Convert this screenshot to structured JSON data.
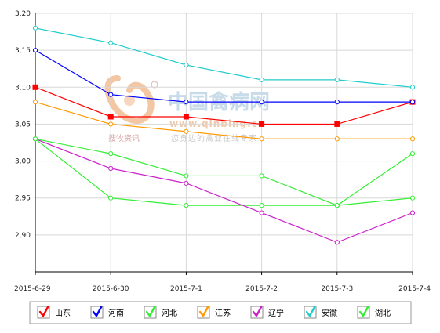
{
  "watermark": {
    "title": "中国禽病网",
    "url": "www.qinbing.cn",
    "brand": "搜牧资讯",
    "slogan": "您身边的禽业在线专家"
  },
  "chart_data": {
    "type": "line",
    "title": "",
    "xlabel": "",
    "ylabel": "",
    "categories": [
      "2015-6-29",
      "2015-6-30",
      "2015-7-1",
      "2015-7-2",
      "2015-7-3",
      "2015-7-4"
    ],
    "ylim": [
      2.85,
      3.2
    ],
    "yticks": [
      "3,20",
      "3,15",
      "3,10",
      "3,05",
      "3,00",
      "2,95",
      "2,90"
    ],
    "grid": true,
    "legend_position": "bottom",
    "series": [
      {
        "name": "山东",
        "color": "#ff0000",
        "marker": "square",
        "values": [
          3.1,
          3.06,
          3.06,
          3.05,
          3.05,
          3.08
        ]
      },
      {
        "name": "河南",
        "color": "#0000ff",
        "marker": "circle",
        "values": [
          3.15,
          3.09,
          3.08,
          3.08,
          3.08,
          3.08
        ]
      },
      {
        "name": "河北",
        "color": "#33ee33",
        "marker": "circle",
        "values": [
          3.03,
          2.95,
          2.94,
          2.94,
          2.94,
          2.95
        ]
      },
      {
        "name": "江苏",
        "color": "#ff9900",
        "marker": "circle",
        "values": [
          3.08,
          3.05,
          3.04,
          3.03,
          3.03,
          3.03
        ]
      },
      {
        "name": "辽宁",
        "color": "#cc22cc",
        "marker": "circle",
        "values": [
          3.03,
          2.99,
          2.97,
          2.93,
          2.89,
          2.93
        ]
      },
      {
        "name": "安徽",
        "color": "#22cccc",
        "marker": "circle",
        "values": [
          3.18,
          3.16,
          3.13,
          3.11,
          3.11,
          3.1
        ]
      },
      {
        "name": "湖北",
        "color": "#33ee33",
        "marker": "circle",
        "values": [
          3.03,
          3.01,
          2.98,
          2.98,
          2.94,
          3.01
        ]
      }
    ]
  }
}
